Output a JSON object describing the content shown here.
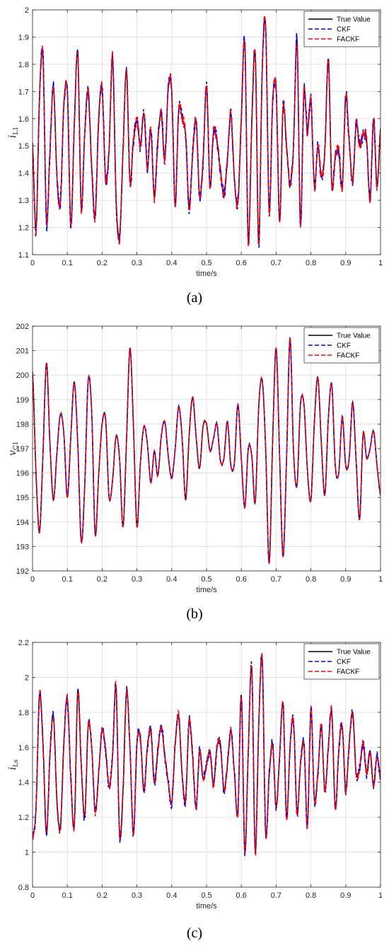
{
  "chart_data": [
    {
      "type": "line",
      "panel_label": "(a)",
      "xlabel": "time/s",
      "ylabel": "i",
      "ylabel_sub": "L1",
      "xlim": [
        0,
        1
      ],
      "ylim": [
        1.1,
        2
      ],
      "xticks": [
        0,
        0.1,
        0.2,
        0.3,
        0.4,
        0.5,
        0.6,
        0.7,
        0.8,
        0.9,
        1
      ],
      "xtick_labels": [
        "0",
        "0.1",
        "0.2",
        "0.3",
        "0.4",
        "0.5",
        "0.6",
        "0.7",
        "0.8",
        "0.9",
        "1"
      ],
      "yticks": [
        1.1,
        1.2,
        1.3,
        1.4,
        1.5,
        1.6,
        1.7,
        1.8,
        1.9,
        2
      ],
      "ytick_labels": [
        "1.1",
        "1.2",
        "1.3",
        "1.4",
        "1.5",
        "1.6",
        "1.7",
        "1.8",
        "1.9",
        "2"
      ],
      "grid": true,
      "legend_position": "top-right",
      "series": [
        {
          "name": "True Value",
          "color": "#000000",
          "style": "solid",
          "noise": 0.0
        },
        {
          "name": "CKF",
          "color": "#0000ff",
          "style": "dashed",
          "noise": 0.025
        },
        {
          "name": "FACKF",
          "color": "#ff0000",
          "style": "dashed",
          "noise": 0.02
        }
      ],
      "x": [
        0,
        0.01,
        0.02,
        0.03,
        0.04,
        0.05,
        0.06,
        0.07,
        0.08,
        0.09,
        0.1,
        0.11,
        0.12,
        0.13,
        0.14,
        0.15,
        0.16,
        0.17,
        0.18,
        0.19,
        0.2,
        0.21,
        0.22,
        0.23,
        0.24,
        0.25,
        0.26,
        0.27,
        0.28,
        0.29,
        0.3,
        0.31,
        0.32,
        0.33,
        0.34,
        0.35,
        0.36,
        0.37,
        0.38,
        0.39,
        0.4,
        0.41,
        0.42,
        0.43,
        0.44,
        0.45,
        0.46,
        0.47,
        0.48,
        0.49,
        0.5,
        0.51,
        0.52,
        0.53,
        0.54,
        0.55,
        0.56,
        0.57,
        0.58,
        0.59,
        0.6,
        0.61,
        0.62,
        0.63,
        0.64,
        0.65,
        0.66,
        0.67,
        0.68,
        0.69,
        0.7,
        0.71,
        0.72,
        0.73,
        0.74,
        0.75,
        0.76,
        0.77,
        0.78,
        0.79,
        0.8,
        0.81,
        0.82,
        0.83,
        0.84,
        0.85,
        0.86,
        0.87,
        0.88,
        0.89,
        0.9,
        0.91,
        0.92,
        0.93,
        0.94,
        0.95,
        0.96,
        0.97,
        0.98,
        0.99,
        1.0
      ],
      "y": [
        1.5,
        1.19,
        1.68,
        1.83,
        1.22,
        1.48,
        1.72,
        1.39,
        1.29,
        1.65,
        1.7,
        1.21,
        1.58,
        1.84,
        1.27,
        1.55,
        1.7,
        1.42,
        1.24,
        1.6,
        1.71,
        1.38,
        1.49,
        1.83,
        1.31,
        1.16,
        1.48,
        1.78,
        1.37,
        1.52,
        1.59,
        1.5,
        1.62,
        1.42,
        1.56,
        1.31,
        1.52,
        1.62,
        1.45,
        1.71,
        1.7,
        1.28,
        1.63,
        1.6,
        1.54,
        1.27,
        1.47,
        1.59,
        1.32,
        1.44,
        1.72,
        1.35,
        1.55,
        1.52,
        1.41,
        1.32,
        1.45,
        1.62,
        1.38,
        1.29,
        1.6,
        1.88,
        1.15,
        1.58,
        1.84,
        1.14,
        1.78,
        1.94,
        1.26,
        1.66,
        1.71,
        1.22,
        1.64,
        1.5,
        1.36,
        1.5,
        1.89,
        1.21,
        1.7,
        1.55,
        1.67,
        1.35,
        1.5,
        1.39,
        1.48,
        1.82,
        1.36,
        1.46,
        1.48,
        1.35,
        1.68,
        1.52,
        1.37,
        1.58,
        1.5,
        1.54,
        1.52,
        1.3,
        1.6,
        1.35,
        1.56
      ]
    },
    {
      "type": "line",
      "panel_label": "(b)",
      "xlabel": "time/s",
      "ylabel": "v",
      "ylabel_sub": "C1",
      "xlim": [
        0,
        1
      ],
      "ylim": [
        192,
        202
      ],
      "xticks": [
        0,
        0.1,
        0.2,
        0.3,
        0.4,
        0.5,
        0.6,
        0.7,
        0.8,
        0.9,
        1
      ],
      "xtick_labels": [
        "0",
        "0.1",
        "0.2",
        "0.3",
        "0.4",
        "0.5",
        "0.6",
        "0.7",
        "0.8",
        "0.9",
        "1"
      ],
      "yticks": [
        192,
        193,
        194,
        195,
        196,
        197,
        198,
        199,
        200,
        201,
        202
      ],
      "ytick_labels": [
        "192",
        "193",
        "194",
        "195",
        "196",
        "197",
        "198",
        "199",
        "200",
        "201",
        "202"
      ],
      "grid": true,
      "legend_position": "top-right",
      "series": [
        {
          "name": "True Value",
          "color": "#000000",
          "style": "solid",
          "noise": 0.0
        },
        {
          "name": "CKF",
          "color": "#0000ff",
          "style": "dashed",
          "noise": 0.05
        },
        {
          "name": "FACKF",
          "color": "#ff0000",
          "style": "dashed",
          "noise": 0.04
        }
      ],
      "x": [
        0,
        0.01,
        0.02,
        0.03,
        0.04,
        0.05,
        0.06,
        0.07,
        0.08,
        0.09,
        0.1,
        0.11,
        0.12,
        0.13,
        0.14,
        0.15,
        0.16,
        0.17,
        0.18,
        0.19,
        0.2,
        0.21,
        0.22,
        0.23,
        0.24,
        0.25,
        0.26,
        0.27,
        0.28,
        0.29,
        0.3,
        0.31,
        0.32,
        0.33,
        0.34,
        0.35,
        0.36,
        0.37,
        0.38,
        0.39,
        0.4,
        0.41,
        0.42,
        0.43,
        0.44,
        0.45,
        0.46,
        0.47,
        0.48,
        0.49,
        0.5,
        0.51,
        0.52,
        0.53,
        0.54,
        0.55,
        0.56,
        0.57,
        0.58,
        0.59,
        0.6,
        0.61,
        0.62,
        0.63,
        0.64,
        0.65,
        0.66,
        0.67,
        0.68,
        0.69,
        0.7,
        0.71,
        0.72,
        0.73,
        0.74,
        0.75,
        0.76,
        0.77,
        0.78,
        0.79,
        0.8,
        0.81,
        0.82,
        0.83,
        0.84,
        0.85,
        0.86,
        0.87,
        0.88,
        0.89,
        0.9,
        0.91,
        0.92,
        0.93,
        0.94,
        0.95,
        0.96,
        0.97,
        0.98,
        0.99,
        1.0
      ],
      "y": [
        200.1,
        196.0,
        193.6,
        196.8,
        200.5,
        197.2,
        194.9,
        196.8,
        198.4,
        197.6,
        195.0,
        197.5,
        199.7,
        197.2,
        193.2,
        195.5,
        199.8,
        198.5,
        193.5,
        195.9,
        198.0,
        198.2,
        195.0,
        195.7,
        197.5,
        196.6,
        193.8,
        197.3,
        201.1,
        197.9,
        193.8,
        196.4,
        197.9,
        197.2,
        195.6,
        196.9,
        195.9,
        197.5,
        198.1,
        196.7,
        195.8,
        197.0,
        198.7,
        197.4,
        194.9,
        197.5,
        199.1,
        197.5,
        196.2,
        197.9,
        198.0,
        196.9,
        197.4,
        198.0,
        196.5,
        196.6,
        198.1,
        196.3,
        196.4,
        198.8,
        196.6,
        194.6,
        197.0,
        196.7,
        194.8,
        198.7,
        199.8,
        197.0,
        192.3,
        197.3,
        201.1,
        196.7,
        192.6,
        196.6,
        201.5,
        196.9,
        195.5,
        198.8,
        198.8,
        196.1,
        194.9,
        198.1,
        199.9,
        197.2,
        195.1,
        198.2,
        199.6,
        196.3,
        196.0,
        198.3,
        196.3,
        196.6,
        198.9,
        196.5,
        194.1,
        197.6,
        196.6,
        197.0,
        197.7,
        196.3,
        195.1
      ]
    },
    {
      "type": "line",
      "panel_label": "(c)",
      "xlabel": "time/s",
      "ylabel": "i",
      "ylabel_sub": "Ls",
      "xlim": [
        0,
        1
      ],
      "ylim": [
        0.8,
        2.2
      ],
      "xticks": [
        0,
        0.1,
        0.2,
        0.3,
        0.4,
        0.5,
        0.6,
        0.7,
        0.8,
        0.9,
        1
      ],
      "xtick_labels": [
        "0",
        "0.1",
        "0.2",
        "0.3",
        "0.4",
        "0.5",
        "0.6",
        "0.7",
        "0.8",
        "0.9",
        "1"
      ],
      "yticks": [
        0.8,
        1,
        1.2,
        1.4,
        1.6,
        1.8,
        2,
        2.2
      ],
      "ytick_labels": [
        "0.8",
        "1",
        "1.2",
        "1.4",
        "1.6",
        "1.8",
        "2",
        "2.2"
      ],
      "grid": true,
      "legend_position": "top-right",
      "series": [
        {
          "name": "True Value",
          "color": "#000000",
          "style": "solid",
          "noise": 0.0
        },
        {
          "name": "CKF",
          "color": "#0000ff",
          "style": "dashed",
          "noise": 0.03
        },
        {
          "name": "FACKF",
          "color": "#ff0000",
          "style": "dashed",
          "noise": 0.025
        }
      ],
      "x": [
        0,
        0.01,
        0.02,
        0.03,
        0.04,
        0.05,
        0.06,
        0.07,
        0.08,
        0.09,
        0.1,
        0.11,
        0.12,
        0.13,
        0.14,
        0.15,
        0.16,
        0.17,
        0.18,
        0.19,
        0.2,
        0.21,
        0.22,
        0.23,
        0.24,
        0.25,
        0.26,
        0.27,
        0.28,
        0.29,
        0.3,
        0.31,
        0.32,
        0.33,
        0.34,
        0.35,
        0.36,
        0.37,
        0.38,
        0.39,
        0.4,
        0.41,
        0.42,
        0.43,
        0.44,
        0.45,
        0.46,
        0.47,
        0.48,
        0.49,
        0.5,
        0.51,
        0.52,
        0.53,
        0.54,
        0.55,
        0.56,
        0.57,
        0.58,
        0.59,
        0.6,
        0.61,
        0.62,
        0.63,
        0.64,
        0.65,
        0.66,
        0.67,
        0.68,
        0.69,
        0.7,
        0.71,
        0.72,
        0.73,
        0.74,
        0.75,
        0.76,
        0.77,
        0.78,
        0.79,
        0.8,
        0.81,
        0.82,
        0.83,
        0.84,
        0.85,
        0.86,
        0.87,
        0.88,
        0.89,
        0.9,
        0.91,
        0.92,
        0.93,
        0.94,
        0.95,
        0.96,
        0.97,
        0.98,
        0.99,
        1.0
      ],
      "y": [
        1.08,
        1.25,
        1.9,
        1.62,
        1.1,
        1.55,
        1.78,
        1.3,
        1.14,
        1.62,
        1.88,
        1.42,
        1.15,
        1.92,
        1.5,
        1.2,
        1.72,
        1.6,
        1.23,
        1.45,
        1.7,
        1.58,
        1.38,
        1.55,
        1.95,
        1.1,
        1.35,
        1.92,
        1.6,
        1.1,
        1.62,
        1.65,
        1.35,
        1.6,
        1.7,
        1.4,
        1.58,
        1.72,
        1.55,
        1.4,
        1.28,
        1.62,
        1.78,
        1.44,
        1.3,
        1.75,
        1.55,
        1.25,
        1.58,
        1.42,
        1.5,
        1.58,
        1.38,
        1.6,
        1.62,
        1.35,
        1.5,
        1.7,
        1.46,
        1.22,
        1.9,
        1.0,
        1.58,
        2.05,
        1.0,
        1.72,
        2.1,
        1.1,
        1.44,
        1.62,
        1.26,
        1.55,
        1.85,
        1.2,
        1.6,
        1.75,
        1.22,
        1.5,
        1.62,
        1.15,
        1.82,
        1.3,
        1.45,
        1.72,
        1.35,
        1.6,
        1.8,
        1.25,
        1.58,
        1.72,
        1.35,
        1.62,
        1.8,
        1.45,
        1.48,
        1.62,
        1.45,
        1.58,
        1.38,
        1.55,
        1.42
      ]
    }
  ]
}
